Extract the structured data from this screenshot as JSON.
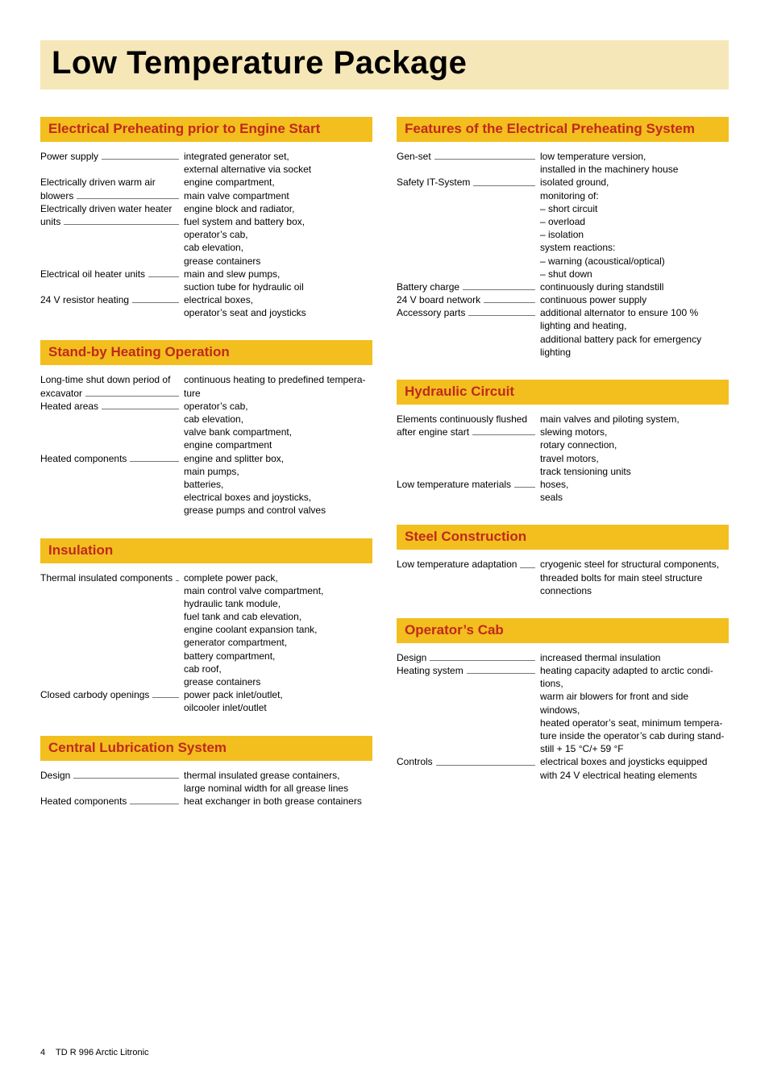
{
  "page": {
    "title": "Low Temperature Package",
    "footer_page": "4",
    "footer_doc": "TD R 996 Arctic Litronic"
  },
  "colors": {
    "title_bg": "#f5e7b8",
    "section_bg": "#f2bf1e",
    "section_text": "#c2281d",
    "body_text": "#000000",
    "leader": "#777777",
    "page_bg": "#ffffff"
  },
  "typography": {
    "title_fontsize": 40,
    "section_fontsize": 17,
    "body_fontsize": 12
  },
  "left": [
    {
      "title": "Electrical Preheating prior to Engine Start",
      "rows": [
        {
          "label": "Power supply",
          "lines": [
            "integrated generator set,",
            "external alternative via socket"
          ]
        },
        {
          "label": "Electrically driven warm air blowers",
          "lines": [
            "engine compartment,",
            "main valve compartment"
          ]
        },
        {
          "label": "Electrically driven water heater units",
          "lines": [
            "engine block and radiator,",
            "fuel system and battery box,",
            "operator’s cab,",
            "cab elevation,",
            "grease containers"
          ]
        },
        {
          "label": "Electrical oil heater units",
          "lines": [
            "main and slew pumps,",
            "suction tube for hydraulic oil"
          ]
        },
        {
          "label": "24 V resistor heating",
          "lines": [
            "electrical boxes,",
            "operator’s seat and joysticks"
          ]
        }
      ]
    },
    {
      "title": "Stand-by Heating Operation",
      "rows": [
        {
          "label": "Long-time shut down period of excavator",
          "lines": [
            "continuous heating to predefined tempera-",
            "ture"
          ]
        },
        {
          "label": "Heated areas",
          "lines": [
            "operator’s cab,",
            "cab elevation,",
            "valve bank compartment,",
            "engine compartment"
          ]
        },
        {
          "label": "Heated components",
          "lines": [
            "engine and splitter box,",
            "main pumps,",
            "batteries,",
            "electrical boxes and joysticks,",
            "grease pumps and control valves"
          ]
        }
      ]
    },
    {
      "title": "Insulation",
      "rows": [
        {
          "label": "Thermal insulated components",
          "lines": [
            "complete power pack,",
            "main control valve compartment,",
            "hydraulic tank module,",
            "fuel tank and cab elevation,",
            "engine coolant expansion tank,",
            "generator compartment,",
            "battery compartment,",
            "cab roof,",
            "grease containers"
          ]
        },
        {
          "label": "Closed carbody openings",
          "lines": [
            "power pack inlet/outlet,",
            "oilcooler inlet/outlet"
          ]
        }
      ]
    },
    {
      "title": "Central Lubrication System",
      "rows": [
        {
          "label": "Design",
          "lines": [
            "thermal insulated grease containers,",
            "large nominal width for all grease lines"
          ]
        },
        {
          "label": "Heated components",
          "lines": [
            "heat exchanger in both grease containers"
          ]
        }
      ]
    }
  ],
  "right": [
    {
      "title": "Features of the Electrical Preheating System",
      "rows": [
        {
          "label": "Gen-set",
          "lines": [
            "low temperature version,",
            "installed in the machinery house"
          ]
        },
        {
          "label": "Safety IT-System",
          "lines": [
            "isolated ground,",
            "monitoring of:",
            "– short circuit",
            "– overload",
            "– isolation",
            "system reactions:",
            "– warning (acoustical/optical)",
            "– shut down"
          ]
        },
        {
          "label": "Battery charge",
          "lines": [
            "continuously during standstill"
          ]
        },
        {
          "label": "24 V board network",
          "lines": [
            "continuous power supply"
          ]
        },
        {
          "label": "Accessory parts",
          "lines": [
            "additional alternator to ensure 100 %",
            "lighting and heating,",
            "additional battery pack for emergency",
            "lighting"
          ]
        }
      ]
    },
    {
      "title": "Hydraulic Circuit",
      "rows": [
        {
          "label": "Elements continuously flushed after engine start",
          "lines": [
            "main valves and piloting system,",
            "slewing motors,",
            "rotary connection,",
            "travel motors,",
            "track tensioning units"
          ]
        },
        {
          "label": "Low temperature materials",
          "lines": [
            "hoses,",
            "seals"
          ]
        }
      ]
    },
    {
      "title": "Steel Construction",
      "rows": [
        {
          "label": "Low temperature adaptation",
          "lines": [
            "cryogenic steel for structural components,",
            "threaded bolts for main steel structure",
            "connections"
          ]
        }
      ]
    },
    {
      "title": "Operator’s Cab",
      "rows": [
        {
          "label": "Design",
          "lines": [
            "increased thermal insulation"
          ]
        },
        {
          "label": "Heating system",
          "lines": [
            "heating capacity adapted to arctic condi-",
            "tions,",
            "warm air blowers for front and side",
            "windows,",
            "heated operator’s seat, minimum tempera-",
            "ture inside the operator’s cab during stand-",
            "still + 15 °C/+ 59 °F"
          ]
        },
        {
          "label": "Controls",
          "lines": [
            "electrical boxes and joysticks equipped",
            "with 24 V electrical heating elements"
          ]
        }
      ]
    }
  ]
}
